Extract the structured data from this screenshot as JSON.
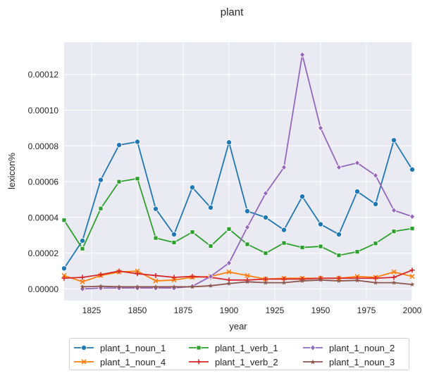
{
  "chart_data": {
    "type": "line",
    "title": "plant",
    "xlabel": "year",
    "ylabel": "lexicon%",
    "xlim": [
      1810,
      2000
    ],
    "ylim": [
      -6.5e-06,
      0.000138
    ],
    "xticks": [
      1825,
      1850,
      1875,
      1900,
      1925,
      1950,
      1975,
      2000
    ],
    "xtick_labels": [
      "1825",
      "1850",
      "1875",
      "1900",
      "1925",
      "1950",
      "1975",
      "2000"
    ],
    "yticks": [
      0,
      2e-05,
      4e-05,
      6e-05,
      8e-05,
      0.0001,
      0.00012
    ],
    "ytick_labels": [
      "0.00000",
      "0.00002",
      "0.00004",
      "0.00006",
      "0.00008",
      "0.00010",
      "0.00012"
    ],
    "grid": true,
    "legend_position": "bottom",
    "legend_columns": 3,
    "background": "#eaeaf2",
    "series": [
      {
        "name": "plant_1_noun_1",
        "color": "#1f77b4",
        "marker": "circle",
        "x": [
          1810,
          1820,
          1830,
          1840,
          1850,
          1860,
          1870,
          1880,
          1890,
          1900,
          1910,
          1920,
          1930,
          1940,
          1950,
          1960,
          1970,
          1980,
          1990,
          2000
        ],
        "values": [
          1.15e-05,
          2.7e-05,
          6.1e-05,
          8.05e-05,
          8.23e-05,
          4.48e-05,
          3.05e-05,
          5.68e-05,
          4.55e-05,
          8.2e-05,
          4.35e-05,
          4e-05,
          3.3e-05,
          5.17e-05,
          3.62e-05,
          3.05e-05,
          5.45e-05,
          4.75e-05,
          8.32e-05,
          6.68e-05
        ]
      },
      {
        "name": "plant_1_noun_4",
        "color": "#ff7f0e",
        "marker": "x",
        "x": [
          1810,
          1820,
          1830,
          1840,
          1850,
          1860,
          1870,
          1880,
          1890,
          1900,
          1910,
          1920,
          1930,
          1940,
          1950,
          1960,
          1970,
          1980,
          1990,
          2000
        ],
        "values": [
          7.5e-06,
          4e-06,
          7.5e-06,
          9.5e-06,
          1e-05,
          4.5e-06,
          5e-06,
          6.5e-06,
          7e-06,
          9.5e-06,
          7.5e-06,
          5.5e-06,
          6e-06,
          6e-06,
          6e-06,
          6e-06,
          7e-06,
          6.5e-06,
          9.5e-06,
          7e-06
        ]
      },
      {
        "name": "plant_1_verb_1",
        "color": "#2ca02c",
        "marker": "square",
        "x": [
          1810,
          1820,
          1830,
          1840,
          1850,
          1860,
          1870,
          1880,
          1890,
          1900,
          1910,
          1920,
          1930,
          1940,
          1950,
          1960,
          1970,
          1980,
          1990,
          2000
        ],
        "values": [
          3.85e-05,
          2.25e-05,
          4.5e-05,
          6e-05,
          6.17e-05,
          2.85e-05,
          2.6e-05,
          3.18e-05,
          2.4e-05,
          3.35e-05,
          2.5e-05,
          2e-05,
          2.57e-05,
          2.32e-05,
          2.38e-05,
          1.88e-05,
          2.08e-05,
          2.55e-05,
          3.22e-05,
          3.38e-05
        ]
      },
      {
        "name": "plant_1_verb_2",
        "color": "#d62728",
        "marker": "plus",
        "x": [
          1810,
          1820,
          1830,
          1840,
          1850,
          1860,
          1870,
          1880,
          1890,
          1900,
          1910,
          1920,
          1930,
          1940,
          1950,
          1960,
          1970,
          1980,
          1990,
          2000
        ],
        "values": [
          6e-06,
          6.5e-06,
          8e-06,
          1e-05,
          8.5e-06,
          7.5e-06,
          6.5e-06,
          7e-06,
          6.5e-06,
          5e-06,
          5e-06,
          5.5e-06,
          5.5e-06,
          5.5e-06,
          6e-06,
          6e-06,
          6e-06,
          6e-06,
          6.5e-06,
          1.05e-05
        ]
      },
      {
        "name": "plant_1_noun_2",
        "color": "#9467bd",
        "marker": "diamond",
        "x": [
          1820,
          1830,
          1840,
          1850,
          1860,
          1870,
          1880,
          1890,
          1900,
          1910,
          1920,
          1930,
          1940,
          1950,
          1960,
          1970,
          1980,
          1990,
          2000
        ],
        "values": [
          0.0,
          5e-07,
          5e-07,
          5e-07,
          5e-07,
          5e-07,
          1.5e-06,
          7e-06,
          1.45e-05,
          3.45e-05,
          5.35e-05,
          6.8e-05,
          0.000131,
          9e-05,
          6.8e-05,
          7.05e-05,
          6.35e-05,
          4.4e-05,
          4.05e-05
        ]
      },
      {
        "name": "plant_1_noun_3",
        "color": "#8c564b",
        "marker": "star",
        "x": [
          1820,
          1830,
          1840,
          1850,
          1860,
          1870,
          1880,
          1890,
          1900,
          1910,
          1920,
          1930,
          1940,
          1950,
          1960,
          1970,
          1980,
          1990,
          2000
        ],
        "values": [
          1.2e-06,
          1.5e-06,
          1.2e-06,
          1.2e-06,
          1.2e-06,
          1.2e-06,
          1.2e-06,
          1.8e-06,
          3e-06,
          4e-06,
          3.5e-06,
          3.5e-06,
          4.5e-06,
          5e-06,
          4.5e-06,
          4.8e-06,
          3.5e-06,
          3.5e-06,
          2.5e-06
        ]
      }
    ]
  }
}
